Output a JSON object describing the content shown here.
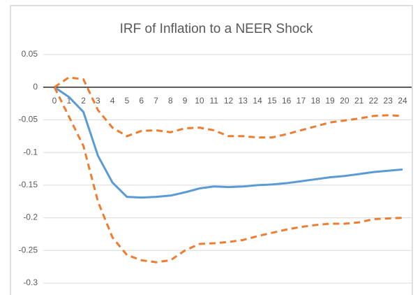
{
  "chart_data": {
    "type": "line",
    "title": "IRF of Inflation to a NEER Shock",
    "categories": [
      "0",
      "1",
      "2",
      "3",
      "4",
      "5",
      "6",
      "7",
      "8",
      "9",
      "10",
      "11",
      "12",
      "13",
      "14",
      "15",
      "16",
      "17",
      "18",
      "19",
      "20",
      "21",
      "22",
      "23",
      "24"
    ],
    "series": [
      {
        "color": "#5b9bd5",
        "dashed": false,
        "values": [
          0,
          -0.015,
          -0.038,
          -0.105,
          -0.146,
          -0.168,
          -0.169,
          -0.168,
          -0.166,
          -0.161,
          -0.155,
          -0.152,
          -0.153,
          -0.152,
          -0.15,
          -0.149,
          -0.147,
          -0.144,
          -0.141,
          -0.138,
          -0.136,
          -0.133,
          -0.13,
          -0.128,
          -0.126
        ]
      },
      {
        "color": "#ed7d31",
        "dashed": true,
        "values": [
          0,
          0.015,
          0.012,
          -0.035,
          -0.062,
          -0.075,
          -0.067,
          -0.066,
          -0.069,
          -0.063,
          -0.062,
          -0.066,
          -0.075,
          -0.075,
          -0.077,
          -0.077,
          -0.072,
          -0.066,
          -0.06,
          -0.054,
          -0.051,
          -0.048,
          -0.044,
          -0.043,
          -0.044
        ]
      },
      {
        "color": "#ed7d31",
        "dashed": true,
        "values": [
          0,
          -0.045,
          -0.09,
          -0.175,
          -0.23,
          -0.257,
          -0.265,
          -0.268,
          -0.265,
          -0.25,
          -0.24,
          -0.239,
          -0.237,
          -0.234,
          -0.228,
          -0.223,
          -0.218,
          -0.214,
          -0.211,
          -0.209,
          -0.209,
          -0.207,
          -0.202,
          -0.201,
          -0.2
        ]
      }
    ],
    "ylim": [
      -0.3,
      0.05
    ],
    "yticks": [
      0.05,
      0,
      -0.05,
      -0.1,
      -0.15,
      -0.2,
      -0.25,
      -0.3
    ],
    "grid": true
  }
}
